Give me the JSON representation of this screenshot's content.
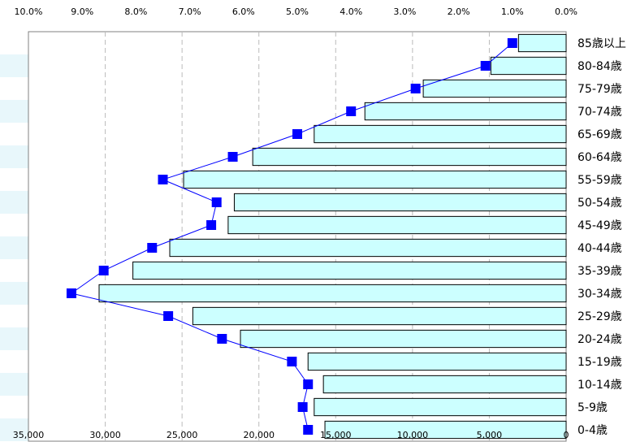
{
  "chart_data": {
    "type": "bar",
    "orientation": "horizontal",
    "x_axis_direction": "reversed",
    "categories": [
      "85歳以上",
      "80-84歳",
      "75-79歳",
      "70-74歳",
      "65-69歳",
      "60-64歳",
      "55-59歳",
      "50-54歳",
      "45-49歳",
      "40-44歳",
      "35-39歳",
      "30-34歳",
      "25-29歳",
      "20-24歳",
      "15-19歳",
      "10-14歳",
      "5-9歳",
      "0-4歳"
    ],
    "series": [
      {
        "type": "bar",
        "axis": "bottom",
        "values": [
          3100,
          4900,
          9300,
          13100,
          16400,
          20400,
          24900,
          21600,
          22000,
          25800,
          28200,
          30400,
          24300,
          21200,
          16800,
          15800,
          16400,
          15700
        ]
      },
      {
        "type": "line",
        "axis": "top",
        "values": [
          1.0,
          1.5,
          2.8,
          4.0,
          5.0,
          6.2,
          7.5,
          6.5,
          6.6,
          7.7,
          8.6,
          9.2,
          7.4,
          6.4,
          5.1,
          4.8,
          4.9,
          4.8
        ]
      }
    ],
    "xlim_bottom": [
      0,
      35000
    ],
    "xticks_bottom": [
      "35,000",
      "30,000",
      "25,000",
      "20,000",
      "15,000",
      "10,000",
      "5,000",
      "0"
    ],
    "xlim_top": [
      0,
      10
    ],
    "xticks_top": [
      "10.0%",
      "9.0%",
      "8.0%",
      "7.0%",
      "6.0%",
      "5.0%",
      "4.0%",
      "3.0%",
      "2.0%",
      "1.0%",
      "0.0%"
    ],
    "grid": "vertical dashed",
    "colors": {
      "bar_fill": "#ccffff",
      "bar_stroke": "#000000",
      "line": "#0000ff",
      "marker": "#0000ff",
      "stripe": "#e8f7fb",
      "grid": "#bbbbbb"
    }
  }
}
